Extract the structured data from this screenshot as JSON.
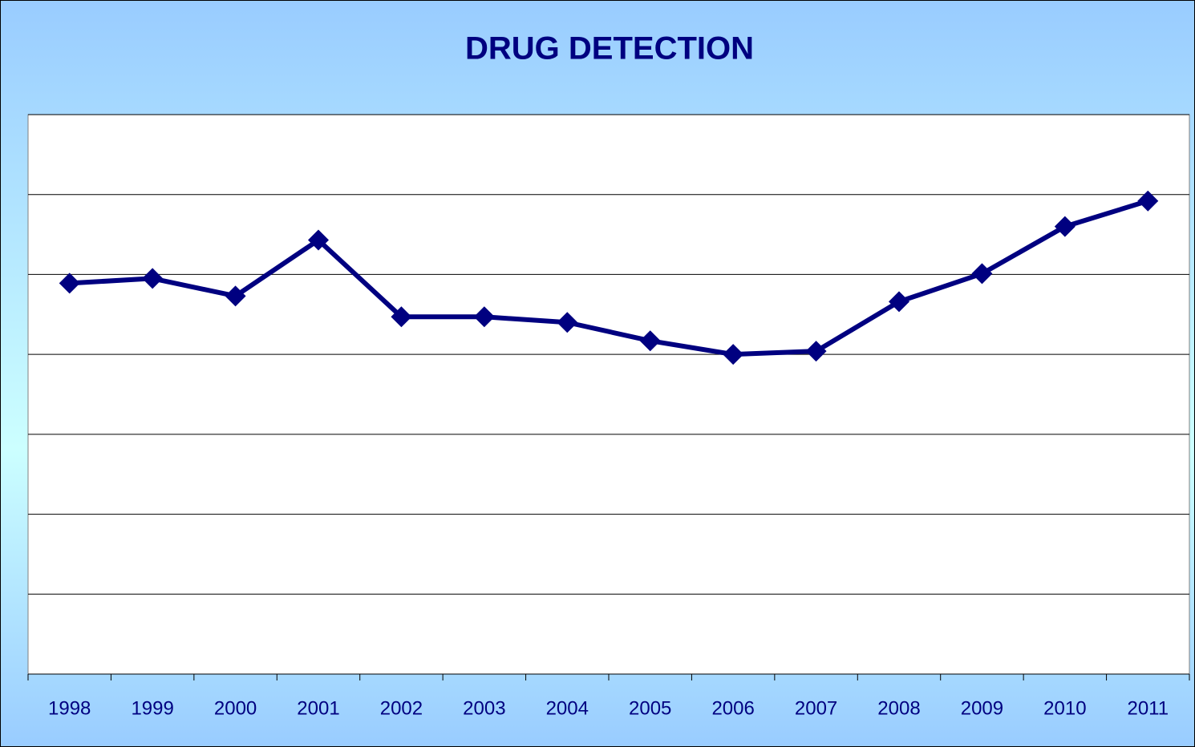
{
  "chart_data": {
    "type": "line",
    "title": "DRUG DETECTION",
    "categories": [
      "1998",
      "1999",
      "2000",
      "2001",
      "2002",
      "2003",
      "2004",
      "2005",
      "2006",
      "2007",
      "2008",
      "2009",
      "2010",
      "2011"
    ],
    "values": [
      4.89,
      4.95,
      4.73,
      5.43,
      4.47,
      4.47,
      4.4,
      4.17,
      4.0,
      4.04,
      4.66,
      5.01,
      5.6,
      5.92
    ],
    "color": "#000080",
    "ylim": [
      0,
      7
    ],
    "yticks": [
      0,
      1,
      2,
      3,
      4,
      5,
      6,
      7
    ],
    "grid": true
  }
}
